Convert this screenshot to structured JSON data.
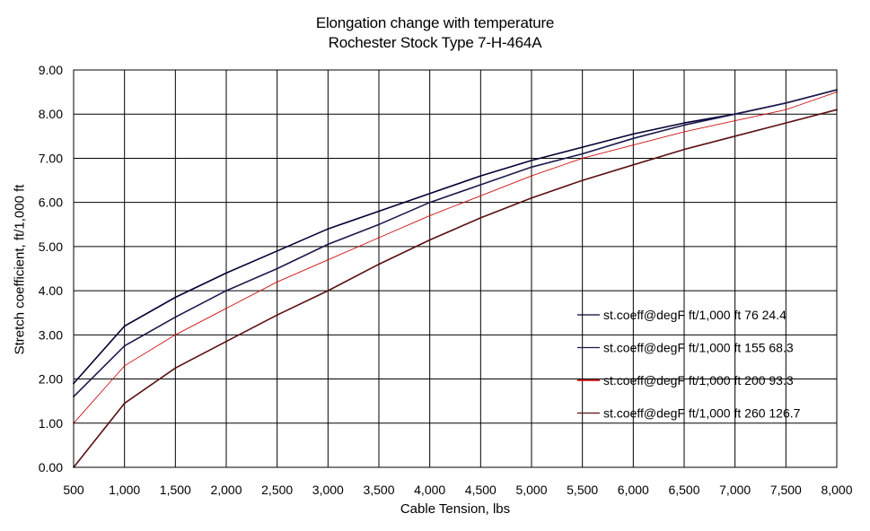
{
  "chart_data": {
    "type": "line",
    "title": "Elongation change with temperature",
    "subtitle": "Rochester Stock Type 7-H-464A",
    "xlabel": "Cable Tension, lbs",
    "ylabel": "Stretch coefficient, ft/1,000 ft",
    "x": [
      500,
      1000,
      1500,
      2000,
      2500,
      3000,
      3500,
      4000,
      4500,
      5000,
      5500,
      6000,
      6500,
      7000,
      7500,
      8000
    ],
    "x_tick_labels": [
      "500",
      "1,000",
      "1,500",
      "2,000",
      "2,500",
      "3,000",
      "3,500",
      "4,000",
      "4,500",
      "5,000",
      "5,500",
      "6,000",
      "6,500",
      "7,000",
      "7,500",
      "8,000"
    ],
    "y_tick_labels": [
      "0.00",
      "1.00",
      "2.00",
      "3.00",
      "4.00",
      "5.00",
      "6.00",
      "7.00",
      "8.00",
      "9.00"
    ],
    "xlim": [
      500,
      8000
    ],
    "ylim": [
      0,
      9
    ],
    "grid": true,
    "legend_position": "right",
    "series": [
      {
        "name": "st.coeff@degF ft/1,000 ft 76 24.4",
        "color": "#000033",
        "values": [
          1.9,
          3.2,
          3.85,
          4.4,
          4.9,
          5.4,
          5.8,
          6.2,
          6.6,
          6.95,
          7.25,
          7.55,
          7.8,
          8.0,
          8.25,
          8.55
        ]
      },
      {
        "name": "st.coeff@degF ft/1,000 ft 155 68.3",
        "color": "#1a1a4d",
        "values": [
          1.6,
          2.75,
          3.4,
          4.0,
          4.5,
          5.05,
          5.5,
          6.0,
          6.4,
          6.8,
          7.1,
          7.45,
          7.75,
          8.0,
          8.25,
          8.55
        ]
      },
      {
        "name": "st.coeff@degF ft/1,000 ft 200 93.3",
        "color": "#cc1111",
        "values": [
          1.0,
          2.3,
          3.0,
          3.6,
          4.2,
          4.7,
          5.2,
          5.7,
          6.15,
          6.6,
          7.0,
          7.3,
          7.6,
          7.85,
          8.1,
          8.5
        ]
      },
      {
        "name": "st.coeff@degF ft/1,000 ft 260 126.7",
        "color": "#5a1010",
        "values": [
          0.0,
          1.45,
          2.25,
          2.85,
          3.45,
          4.0,
          4.6,
          5.15,
          5.65,
          6.1,
          6.5,
          6.85,
          7.2,
          7.5,
          7.8,
          8.1
        ]
      }
    ]
  }
}
